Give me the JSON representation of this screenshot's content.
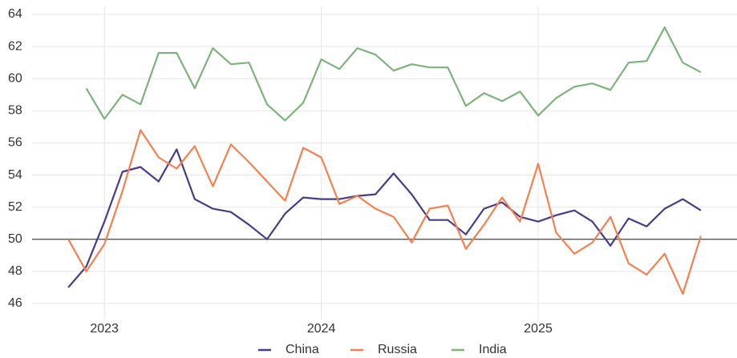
{
  "chart_data": {
    "type": "line",
    "x": [
      "2022-11",
      "2022-12",
      "2023-01",
      "2023-02",
      "2023-03",
      "2023-04",
      "2023-05",
      "2023-06",
      "2023-07",
      "2023-08",
      "2023-09",
      "2023-10",
      "2023-11",
      "2023-12",
      "2024-01",
      "2024-02",
      "2024-03",
      "2024-04",
      "2024-05",
      "2024-06",
      "2024-07",
      "2024-08",
      "2024-09",
      "2024-10",
      "2024-11",
      "2024-12",
      "2025-01",
      "2025-02",
      "2025-03",
      "2025-04",
      "2025-05",
      "2025-06",
      "2025-07",
      "2025-08",
      "2025-09",
      "2025-10"
    ],
    "series": [
      {
        "name": "China",
        "color": "#4b3a8a",
        "values": [
          47.0,
          48.3,
          51.1,
          54.2,
          54.5,
          53.6,
          55.6,
          52.5,
          51.9,
          51.7,
          50.9,
          50.0,
          51.6,
          52.6,
          52.5,
          52.5,
          52.7,
          52.8,
          54.1,
          52.8,
          51.2,
          51.2,
          50.3,
          51.9,
          52.3,
          51.4,
          51.1,
          51.5,
          51.8,
          51.1,
          49.6,
          51.3,
          50.8,
          51.9,
          52.5,
          51.8
        ]
      },
      {
        "name": "Russia",
        "color": "#f4804f",
        "values": [
          50.0,
          48.0,
          49.7,
          53.0,
          56.8,
          55.1,
          54.4,
          55.8,
          53.3,
          55.9,
          54.8,
          53.6,
          52.4,
          55.7,
          55.1,
          52.2,
          52.7,
          51.9,
          51.4,
          49.8,
          51.9,
          52.1,
          49.4,
          50.9,
          52.6,
          51.1,
          54.7,
          50.4,
          49.1,
          49.8,
          51.4,
          48.5,
          47.8,
          49.1,
          46.6,
          50.2
        ]
      },
      {
        "name": "India",
        "color": "#7db37a",
        "values": [
          null,
          59.4,
          57.5,
          59.0,
          58.4,
          61.6,
          61.6,
          59.4,
          61.9,
          60.9,
          61.0,
          58.4,
          57.4,
          58.5,
          61.2,
          60.6,
          61.9,
          61.5,
          60.5,
          60.9,
          60.7,
          60.7,
          58.3,
          59.1,
          58.6,
          59.2,
          57.7,
          58.8,
          59.5,
          59.7,
          59.3,
          61.0,
          61.1,
          63.2,
          61.0,
          60.4
        ]
      }
    ],
    "xlim": [
      "2022-09",
      "2025-12"
    ],
    "xticks": [
      "2023",
      "2024",
      "2025"
    ],
    "ylim": [
      45,
      64.5
    ],
    "yticks": [
      46,
      48,
      50,
      52,
      54,
      56,
      58,
      60,
      62,
      64
    ],
    "hline": 50,
    "grid": true,
    "legend": "bottom"
  }
}
